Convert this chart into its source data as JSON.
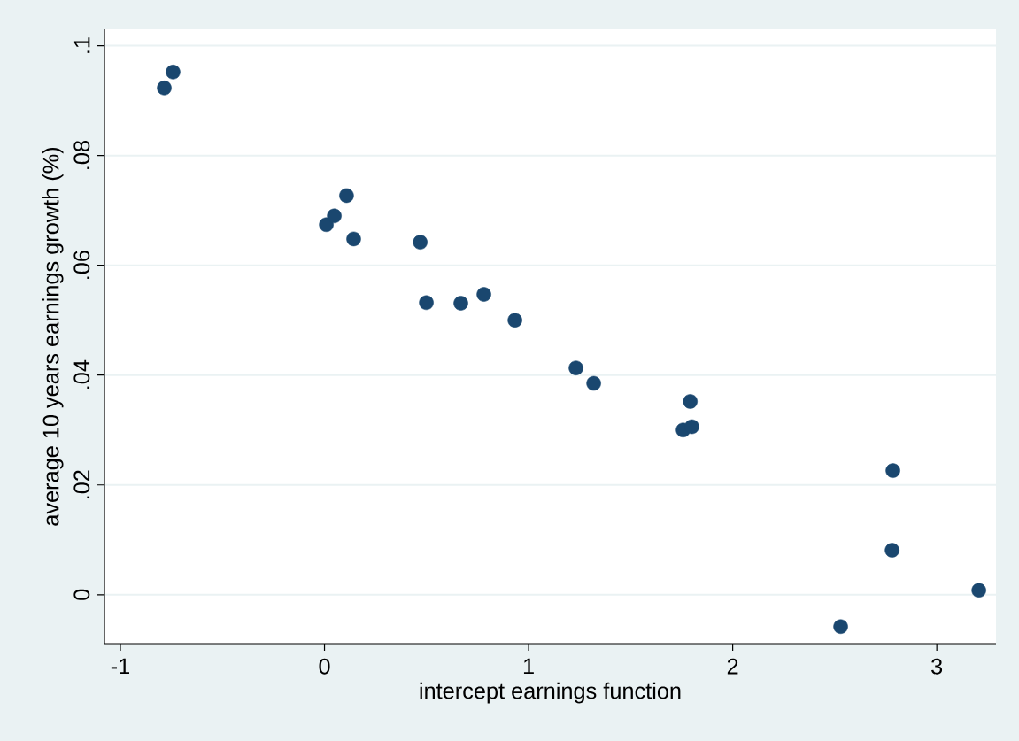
{
  "chart_data": {
    "type": "scatter",
    "xlabel": "intercept earnings function",
    "ylabel": "average 10 years earnings growth (%)",
    "x": [
      -0.785,
      -0.742,
      0.009,
      0.048,
      0.108,
      0.143,
      0.469,
      0.499,
      0.668,
      0.781,
      0.933,
      1.232,
      1.319,
      1.757,
      1.8,
      1.792,
      2.529,
      2.781,
      2.785,
      3.206
    ],
    "values": [
      0.0923,
      0.0952,
      0.0674,
      0.069,
      0.0727,
      0.0648,
      0.0642,
      0.0532,
      0.0531,
      0.0547,
      0.05,
      0.0413,
      0.0385,
      0.03,
      0.0306,
      0.0352,
      -0.0058,
      0.0081,
      0.0226,
      0.0008
    ],
    "color": "#1a476f",
    "marker": "circle",
    "grid": "y",
    "xlim": [
      -1.078,
      3.29
    ],
    "ylim": [
      -0.0089,
      0.103
    ],
    "xticks": [
      -1,
      0,
      1,
      2,
      3
    ],
    "yticks": [
      {
        "value": 0,
        "label": "0"
      },
      {
        "value": 0.02,
        "label": ".02"
      },
      {
        "value": 0.04,
        "label": ".04"
      },
      {
        "value": 0.06,
        "label": ".06"
      },
      {
        "value": 0.08,
        "label": ".08"
      },
      {
        "value": 0.1,
        "label": ".1"
      }
    ]
  }
}
